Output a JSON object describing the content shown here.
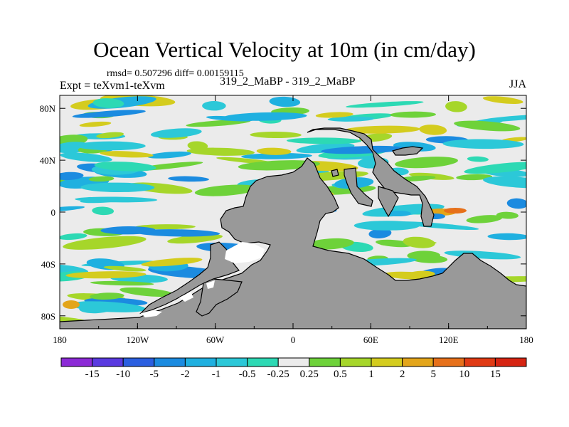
{
  "chart_data": {
    "type": "heatmap",
    "title": "Ocean Vertical Velocity at 10m (in cm/day)",
    "stats_label": "rmsd= 0.507296 diff= 0.00159115",
    "experiment_label": "Expt = teXvm1-teXvm",
    "case_label": "319_2_MaBP - 319_2_MaBP",
    "season_label": "JJA",
    "projection": "cylindrical equidistant",
    "x_axis": {
      "range": [
        -180,
        180
      ],
      "ticks": [
        -180,
        -120,
        -60,
        0,
        60,
        120,
        180
      ],
      "tick_labels": [
        "180",
        "120W",
        "60W",
        "0",
        "60E",
        "120E",
        "180"
      ]
    },
    "y_axis": {
      "range": [
        -90,
        90
      ],
      "ticks": [
        80,
        40,
        0,
        -40,
        -80
      ],
      "tick_labels": [
        "80N",
        "40N",
        "0",
        "40S",
        "80S"
      ]
    },
    "contour_levels": [
      -15,
      -10,
      -5,
      -2,
      -1,
      -0.5,
      -0.25,
      0.25,
      0.5,
      1,
      2,
      5,
      10,
      15
    ],
    "colorbar_labels": [
      "-15",
      "-10",
      "-5",
      "-2",
      "-1",
      "-0.5",
      "-0.25",
      "0.25",
      "0.5",
      "1",
      "2",
      "5",
      "10",
      "15"
    ],
    "colorbar_colors": [
      "#8c2ad6",
      "#5a3ae0",
      "#2b5fe0",
      "#1b8be0",
      "#1fb0e0",
      "#2cc8d8",
      "#2dd9b4",
      "#ebebeb",
      "#6ed23a",
      "#a6d62a",
      "#d4cc1e",
      "#e3a51a",
      "#e6701a",
      "#e03a14",
      "#d62412"
    ],
    "land_color": "#999999",
    "missing_color": "#ffffff"
  }
}
